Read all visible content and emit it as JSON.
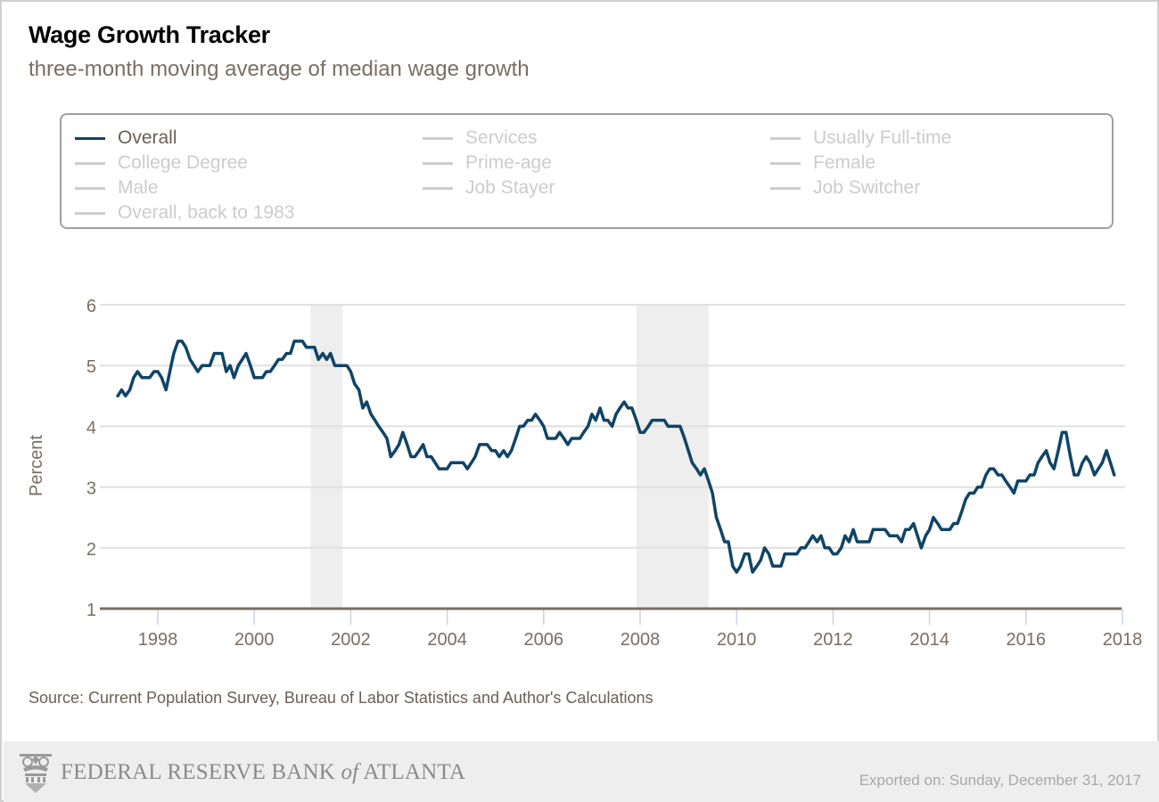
{
  "header": {
    "title": "Wage Growth Tracker",
    "subtitle": "three-month moving average of median wage growth"
  },
  "legend": {
    "items": [
      {
        "label": "Overall",
        "active": true
      },
      {
        "label": "Services",
        "active": false
      },
      {
        "label": "Usually Full-time",
        "active": false
      },
      {
        "label": "College Degree",
        "active": false
      },
      {
        "label": "Prime-age",
        "active": false
      },
      {
        "label": "Female",
        "active": false
      },
      {
        "label": "Male",
        "active": false
      },
      {
        "label": "Job Stayer",
        "active": false
      },
      {
        "label": "Job Switcher",
        "active": false
      },
      {
        "label": "Overall, back to 1983",
        "active": false
      }
    ]
  },
  "colors": {
    "series": "#0f4466",
    "inactive": "#cccccc",
    "recession": "#eeeeee",
    "axis": "#7a6e62",
    "grid": "#e0e0e0",
    "tick": "#c8d4e6"
  },
  "chart_data": {
    "type": "line",
    "title": "Wage Growth Tracker",
    "subtitle": "three-month moving average of median wage growth",
    "xlabel": "",
    "ylabel": "Percent",
    "ylim": [
      1,
      6
    ],
    "xlim": [
      1997.3,
      2018
    ],
    "yticks": [
      "1",
      "2",
      "3",
      "4",
      "5",
      "6"
    ],
    "xticks": [
      "1998",
      "2000",
      "2002",
      "2004",
      "2006",
      "2008",
      "2010",
      "2012",
      "2014",
      "2016",
      "2018"
    ],
    "grid": true,
    "legend_position": "top",
    "recessions": [
      [
        2001.17,
        2001.83
      ],
      [
        2007.92,
        2009.42
      ]
    ],
    "series": [
      {
        "name": "Overall",
        "x": [
          1997.17,
          1997.25,
          1997.33,
          1997.42,
          1997.5,
          1997.58,
          1997.67,
          1997.75,
          1997.83,
          1997.92,
          1998.0,
          1998.08,
          1998.17,
          1998.25,
          1998.33,
          1998.42,
          1998.5,
          1998.58,
          1998.67,
          1998.75,
          1998.83,
          1998.92,
          1999.0,
          1999.08,
          1999.17,
          1999.25,
          1999.33,
          1999.42,
          1999.5,
          1999.58,
          1999.67,
          1999.75,
          1999.83,
          1999.92,
          2000.0,
          2000.08,
          2000.17,
          2000.25,
          2000.33,
          2000.42,
          2000.5,
          2000.58,
          2000.67,
          2000.75,
          2000.83,
          2000.92,
          2001.0,
          2001.08,
          2001.17,
          2001.25,
          2001.33,
          2001.42,
          2001.5,
          2001.58,
          2001.67,
          2001.75,
          2001.83,
          2001.92,
          2002.0,
          2002.08,
          2002.17,
          2002.25,
          2002.33,
          2002.42,
          2002.5,
          2002.58,
          2002.67,
          2002.75,
          2002.83,
          2002.92,
          2003.0,
          2003.08,
          2003.17,
          2003.25,
          2003.33,
          2003.42,
          2003.5,
          2003.58,
          2003.67,
          2003.75,
          2003.83,
          2003.92,
          2004.0,
          2004.08,
          2004.17,
          2004.25,
          2004.33,
          2004.42,
          2004.5,
          2004.58,
          2004.67,
          2004.75,
          2004.83,
          2004.92,
          2005.0,
          2005.08,
          2005.17,
          2005.25,
          2005.33,
          2005.42,
          2005.5,
          2005.58,
          2005.67,
          2005.75,
          2005.83,
          2005.92,
          2006.0,
          2006.08,
          2006.17,
          2006.25,
          2006.33,
          2006.42,
          2006.5,
          2006.58,
          2006.67,
          2006.75,
          2006.83,
          2006.92,
          2007.0,
          2007.08,
          2007.17,
          2007.25,
          2007.33,
          2007.42,
          2007.5,
          2007.58,
          2007.67,
          2007.75,
          2007.83,
          2007.92,
          2008.0,
          2008.08,
          2008.17,
          2008.25,
          2008.33,
          2008.42,
          2008.5,
          2008.58,
          2008.67,
          2008.75,
          2008.83,
          2008.92,
          2009.0,
          2009.08,
          2009.17,
          2009.25,
          2009.33,
          2009.42,
          2009.5,
          2009.58,
          2009.67,
          2009.75,
          2009.83,
          2009.92,
          2010.0,
          2010.08,
          2010.17,
          2010.25,
          2010.33,
          2010.42,
          2010.5,
          2010.58,
          2010.67,
          2010.75,
          2010.83,
          2010.92,
          2011.0,
          2011.08,
          2011.17,
          2011.25,
          2011.33,
          2011.42,
          2011.5,
          2011.58,
          2011.67,
          2011.75,
          2011.83,
          2011.92,
          2012.0,
          2012.08,
          2012.17,
          2012.25,
          2012.33,
          2012.42,
          2012.5,
          2012.58,
          2012.67,
          2012.75,
          2012.83,
          2012.92,
          2013.0,
          2013.08,
          2013.17,
          2013.25,
          2013.33,
          2013.42,
          2013.5,
          2013.58,
          2013.67,
          2013.75,
          2013.83,
          2013.92,
          2014.0,
          2014.08,
          2014.17,
          2014.25,
          2014.33,
          2014.42,
          2014.5,
          2014.58,
          2014.67,
          2014.75,
          2014.83,
          2014.92,
          2015.0,
          2015.08,
          2015.17,
          2015.25,
          2015.33,
          2015.42,
          2015.5,
          2015.58,
          2015.67,
          2015.75,
          2015.83,
          2015.92,
          2016.0,
          2016.08,
          2016.17,
          2016.25,
          2016.33,
          2016.42,
          2016.5,
          2016.58,
          2016.67,
          2016.75,
          2016.83,
          2016.92,
          2017.0,
          2017.08,
          2017.17,
          2017.25,
          2017.33,
          2017.42,
          2017.5,
          2017.58,
          2017.67,
          2017.75,
          2017.83
        ],
        "values": [
          4.5,
          4.6,
          4.5,
          4.6,
          4.8,
          4.9,
          4.8,
          4.8,
          4.8,
          4.9,
          4.9,
          4.8,
          4.6,
          4.9,
          5.2,
          5.4,
          5.4,
          5.3,
          5.1,
          5.0,
          4.9,
          5.0,
          5.0,
          5.0,
          5.2,
          5.2,
          5.2,
          4.9,
          5.0,
          4.8,
          5.0,
          5.1,
          5.2,
          5.0,
          4.8,
          4.8,
          4.8,
          4.9,
          4.9,
          5.0,
          5.1,
          5.1,
          5.2,
          5.2,
          5.4,
          5.4,
          5.4,
          5.3,
          5.3,
          5.3,
          5.1,
          5.2,
          5.1,
          5.2,
          5.0,
          5.0,
          5.0,
          5.0,
          4.9,
          4.7,
          4.6,
          4.3,
          4.4,
          4.2,
          4.1,
          4.0,
          3.9,
          3.8,
          3.5,
          3.6,
          3.7,
          3.9,
          3.7,
          3.5,
          3.5,
          3.6,
          3.7,
          3.5,
          3.5,
          3.4,
          3.3,
          3.3,
          3.3,
          3.4,
          3.4,
          3.4,
          3.4,
          3.3,
          3.4,
          3.5,
          3.7,
          3.7,
          3.7,
          3.6,
          3.6,
          3.5,
          3.6,
          3.5,
          3.6,
          3.8,
          4.0,
          4.0,
          4.1,
          4.1,
          4.2,
          4.1,
          4.0,
          3.8,
          3.8,
          3.8,
          3.9,
          3.8,
          3.7,
          3.8,
          3.8,
          3.8,
          3.9,
          4.0,
          4.2,
          4.1,
          4.3,
          4.1,
          4.1,
          4.0,
          4.2,
          4.3,
          4.4,
          4.3,
          4.3,
          4.1,
          3.9,
          3.9,
          4.0,
          4.1,
          4.1,
          4.1,
          4.1,
          4.0,
          4.0,
          4.0,
          4.0,
          3.8,
          3.6,
          3.4,
          3.3,
          3.2,
          3.3,
          3.1,
          2.9,
          2.5,
          2.3,
          2.1,
          2.1,
          1.7,
          1.6,
          1.7,
          1.9,
          1.9,
          1.6,
          1.7,
          1.8,
          2.0,
          1.9,
          1.7,
          1.7,
          1.7,
          1.9,
          1.9,
          1.9,
          1.9,
          2.0,
          2.0,
          2.1,
          2.2,
          2.1,
          2.2,
          2.0,
          2.0,
          1.9,
          1.9,
          2.0,
          2.2,
          2.1,
          2.3,
          2.1,
          2.1,
          2.1,
          2.1,
          2.3,
          2.3,
          2.3,
          2.3,
          2.2,
          2.2,
          2.2,
          2.1,
          2.3,
          2.3,
          2.4,
          2.2,
          2.0,
          2.2,
          2.3,
          2.5,
          2.4,
          2.3,
          2.3,
          2.3,
          2.4,
          2.4,
          2.6,
          2.8,
          2.9,
          2.9,
          3.0,
          3.0,
          3.2,
          3.3,
          3.3,
          3.2,
          3.2,
          3.1,
          3.0,
          2.9,
          3.1,
          3.1,
          3.1,
          3.2,
          3.2,
          3.4,
          3.5,
          3.6,
          3.4,
          3.3,
          3.6,
          3.9,
          3.9,
          3.5,
          3.2,
          3.2,
          3.4,
          3.5,
          3.4,
          3.2,
          3.3,
          3.4,
          3.6,
          3.4,
          3.2
        ]
      }
    ]
  },
  "footer": {
    "source": "Source: Current Population Survey, Bureau of Labor Statistics and Author's Calculations",
    "logo_text_main": "FEDERAL RESERVE BANK ",
    "logo_text_of": "of",
    "logo_text_end": " ATLANTA",
    "exported": "Exported on: Sunday, December 31, 2017"
  }
}
